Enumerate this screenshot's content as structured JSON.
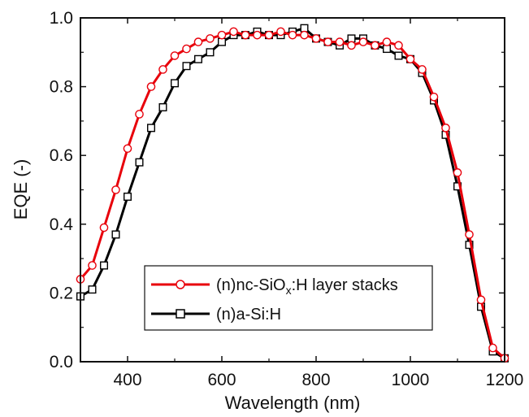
{
  "chart_data": {
    "type": "line",
    "title": "",
    "xlabel": "Wavelength (nm)",
    "ylabel": "EQE (-)",
    "xlim": [
      300,
      1200
    ],
    "ylim": [
      0.0,
      1.0
    ],
    "x_ticks": [
      400,
      600,
      800,
      1000,
      1200
    ],
    "x_tick_labels": [
      "400",
      "600",
      "800",
      "1000",
      "1200"
    ],
    "y_ticks": [
      0.0,
      0.2,
      0.4,
      0.6,
      0.8,
      1.0
    ],
    "y_tick_labels": [
      "0.0",
      "0.2",
      "0.4",
      "0.6",
      "0.8",
      "1.0"
    ],
    "grid": false,
    "legend_position": "bottom-center",
    "series": [
      {
        "name_parts": {
          "prefix": "(n)nc-SiO",
          "subscript": "x",
          "suffix": ":H layer stacks"
        },
        "color": "#e8000b",
        "marker": "circle",
        "x": [
          300,
          325,
          350,
          375,
          400,
          425,
          450,
          475,
          500,
          525,
          550,
          575,
          600,
          625,
          650,
          675,
          700,
          725,
          750,
          775,
          800,
          825,
          850,
          875,
          900,
          925,
          950,
          975,
          1000,
          1025,
          1050,
          1075,
          1100,
          1125,
          1150,
          1175,
          1200
        ],
        "y": [
          0.24,
          0.28,
          0.39,
          0.5,
          0.62,
          0.72,
          0.8,
          0.85,
          0.89,
          0.91,
          0.93,
          0.94,
          0.95,
          0.96,
          0.95,
          0.95,
          0.95,
          0.96,
          0.95,
          0.95,
          0.94,
          0.93,
          0.93,
          0.92,
          0.93,
          0.92,
          0.93,
          0.92,
          0.88,
          0.85,
          0.77,
          0.68,
          0.55,
          0.37,
          0.18,
          0.04,
          0.01
        ]
      },
      {
        "name": "(n)a-Si:H",
        "color": "#000000",
        "marker": "square",
        "x": [
          300,
          325,
          350,
          375,
          400,
          425,
          450,
          475,
          500,
          525,
          550,
          575,
          600,
          625,
          650,
          675,
          700,
          725,
          750,
          775,
          800,
          825,
          850,
          875,
          900,
          925,
          950,
          975,
          1000,
          1025,
          1050,
          1075,
          1100,
          1125,
          1150,
          1175,
          1200
        ],
        "y": [
          0.19,
          0.21,
          0.28,
          0.37,
          0.48,
          0.58,
          0.68,
          0.74,
          0.81,
          0.86,
          0.88,
          0.9,
          0.93,
          0.95,
          0.95,
          0.96,
          0.95,
          0.95,
          0.96,
          0.97,
          0.94,
          0.93,
          0.92,
          0.94,
          0.94,
          0.92,
          0.91,
          0.89,
          0.88,
          0.84,
          0.76,
          0.66,
          0.51,
          0.34,
          0.16,
          0.03,
          0.01
        ]
      }
    ]
  }
}
